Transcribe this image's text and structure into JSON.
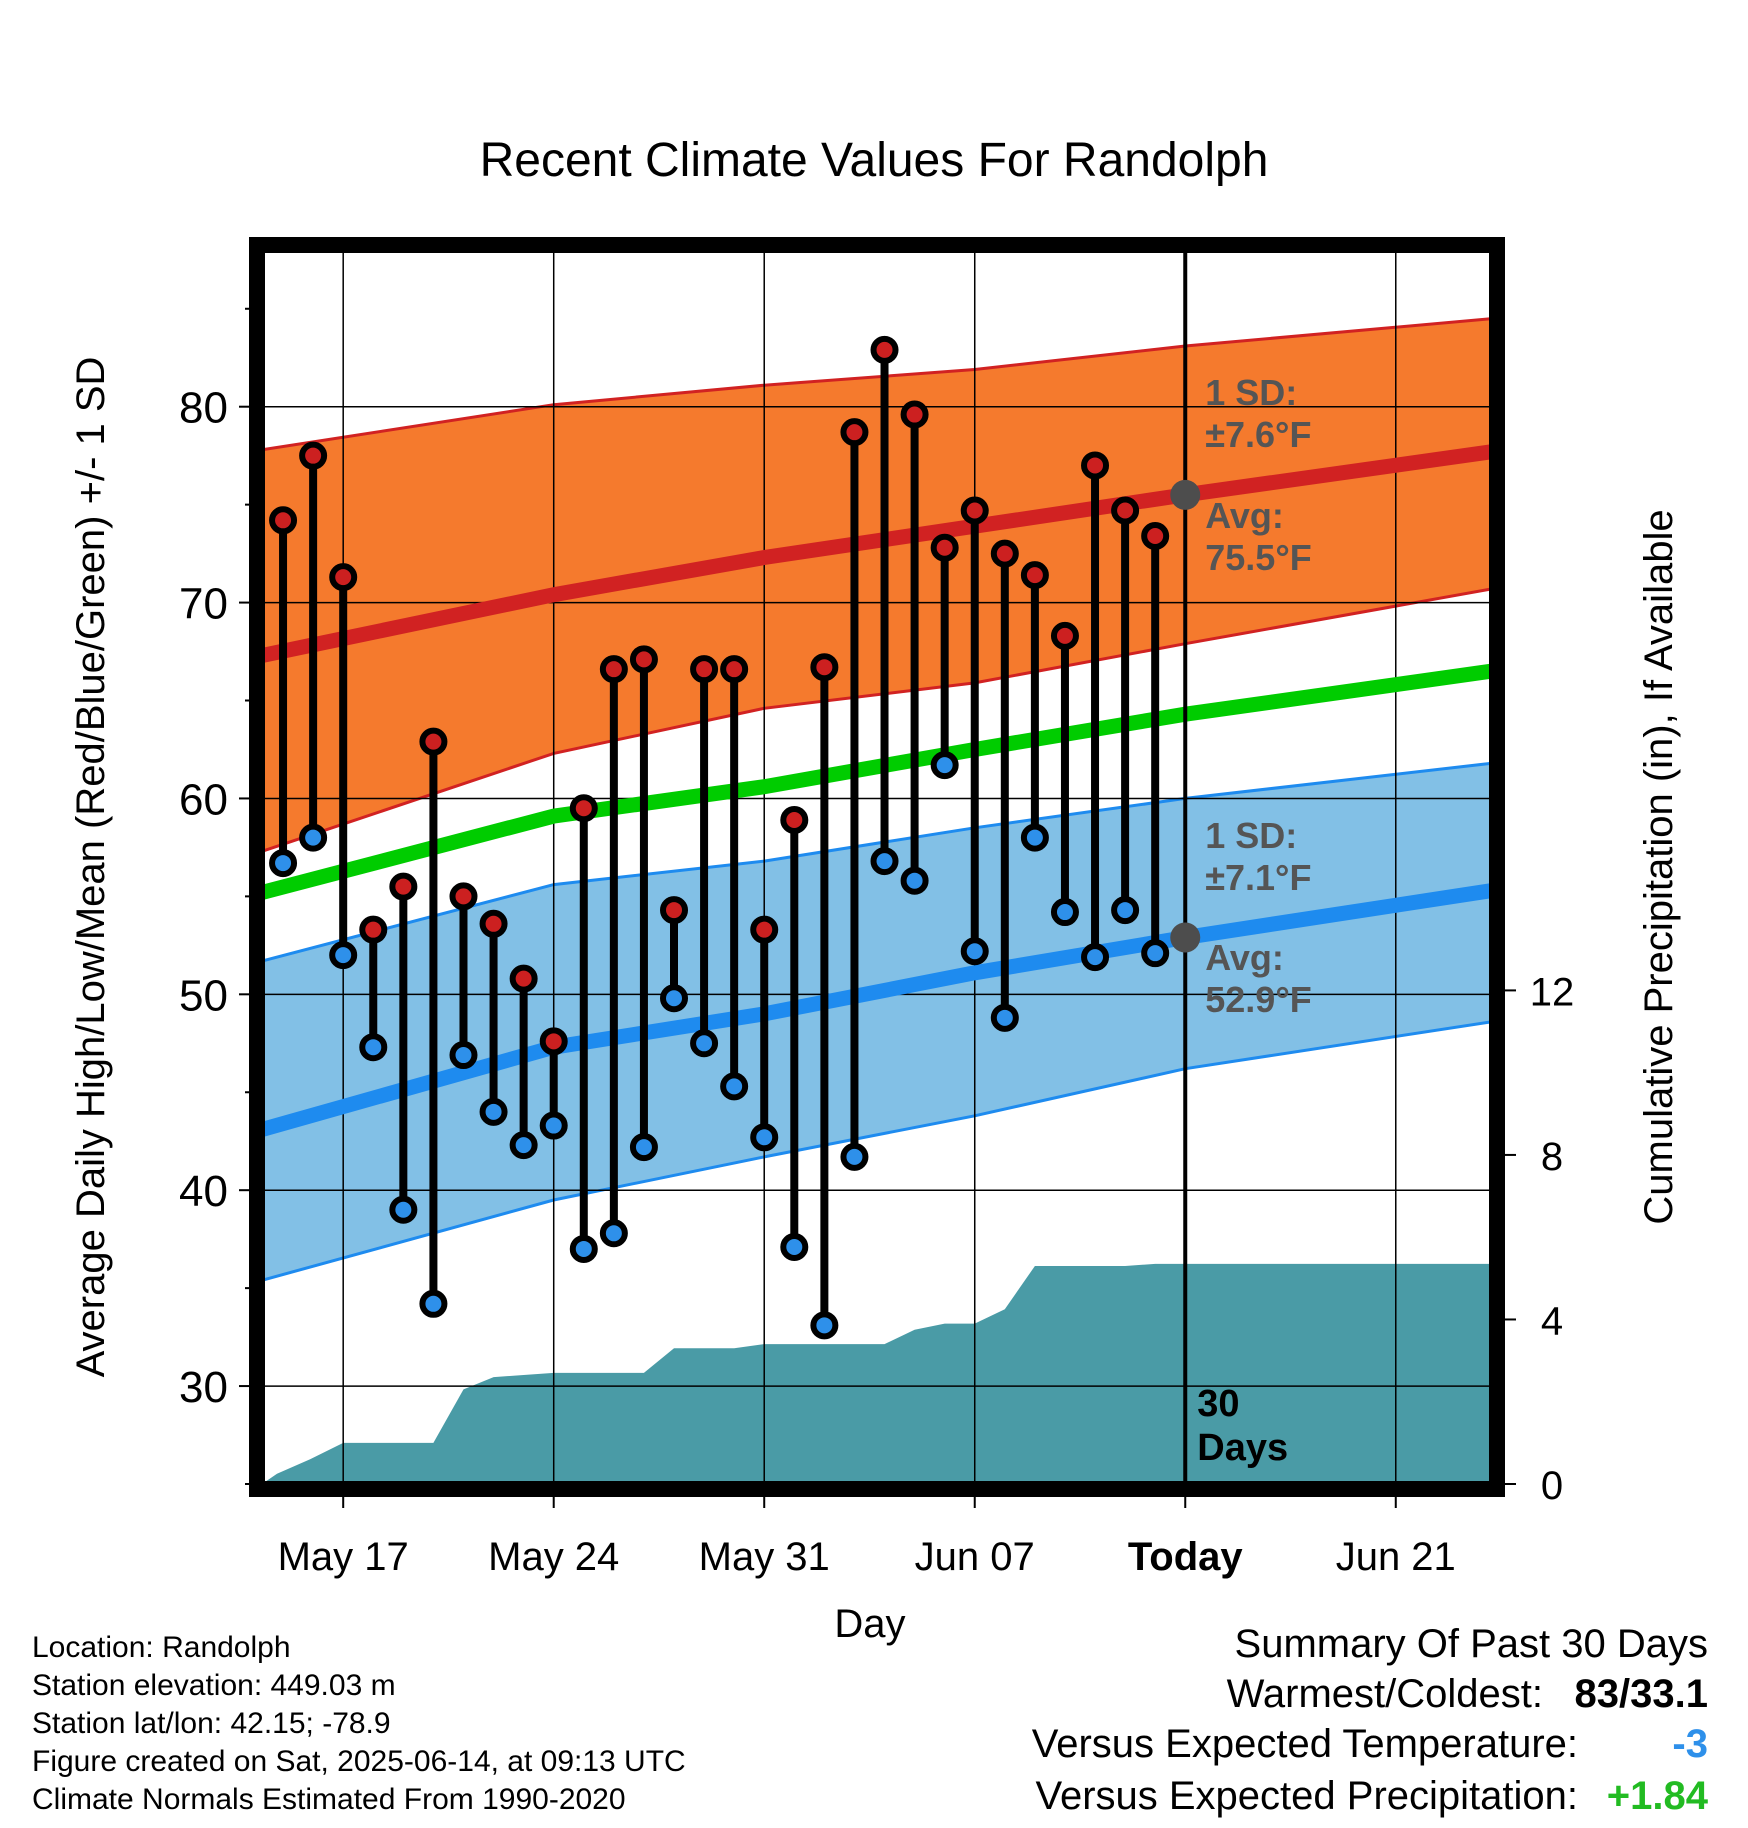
{
  "title": "Recent Climate Values For Randolph",
  "chart_data": {
    "type": "line",
    "title": "Recent Climate Values For Randolph",
    "xlabel": "Day",
    "ylabel_left": "Average Daily High/Low/Mean (Red/Blue/Green) +/- 1 SD",
    "ylabel_right": "Cumulative Precipitation (in), If Available",
    "ylim_left": [
      25,
      88
    ],
    "ylim_right": [
      0,
      30
    ],
    "x_range_days_from_may17": [
      -2.7,
      38.2
    ],
    "yticks_left": [
      30,
      40,
      50,
      60,
      70,
      80
    ],
    "yticks_right": [
      0,
      4,
      8,
      12
    ],
    "xticks": [
      {
        "day": 0,
        "label": "May 17",
        "bold": false
      },
      {
        "day": 7,
        "label": "May 24",
        "bold": false
      },
      {
        "day": 14,
        "label": "May 31",
        "bold": false
      },
      {
        "day": 21,
        "label": "Jun 07",
        "bold": false
      },
      {
        "day": 28,
        "label": "Today",
        "bold": true
      },
      {
        "day": 35,
        "label": "Jun 21",
        "bold": false
      }
    ],
    "today_day": 28,
    "today_annotation": [
      "30",
      "Days"
    ],
    "grid": true,
    "normals": {
      "x": [
        -2.7,
        7,
        14,
        21,
        28,
        38.2
      ],
      "high_mean": [
        67.3,
        70.4,
        72.3,
        73.9,
        75.5,
        77.7
      ],
      "high_plus_sd": [
        77.8,
        80.1,
        81.1,
        81.9,
        83.1,
        84.5
      ],
      "high_minus_sd": [
        57.3,
        62.3,
        64.6,
        65.9,
        67.9,
        70.7
      ],
      "mean": [
        55.2,
        59.1,
        60.6,
        62.5,
        64.3,
        66.5
      ],
      "low_mean": [
        43.1,
        47.3,
        49.0,
        51.1,
        52.9,
        55.3
      ],
      "low_plus_sd": [
        51.7,
        55.6,
        56.8,
        58.5,
        60.0,
        61.8
      ],
      "low_minus_sd": [
        35.4,
        39.5,
        41.7,
        43.8,
        46.2,
        48.6
      ]
    },
    "annotations": {
      "high_sd": [
        "1 SD:",
        "±7.6°F"
      ],
      "high_avg": [
        "Avg:",
        "75.5°F"
      ],
      "low_sd": [
        "1 SD:",
        "±7.1°F"
      ],
      "low_avg": [
        "Avg:",
        "52.9°F"
      ]
    },
    "daily": {
      "day": [
        -2,
        -1,
        0,
        1,
        2,
        3,
        4,
        5,
        6,
        7,
        8,
        9,
        10,
        11,
        12,
        13,
        14,
        15,
        16,
        17,
        18,
        19,
        20,
        21,
        22,
        23,
        24,
        25,
        26,
        27
      ],
      "high": [
        74.2,
        77.5,
        71.3,
        53.3,
        55.5,
        62.9,
        55.0,
        53.6,
        50.8,
        47.6,
        59.5,
        66.6,
        67.1,
        54.3,
        66.6,
        66.6,
        53.3,
        58.9,
        66.7,
        78.7,
        82.9,
        79.6,
        72.8,
        74.7,
        72.5,
        71.4,
        68.3,
        77.0,
        74.7,
        73.4
      ],
      "low": [
        56.7,
        58.0,
        52.0,
        47.3,
        39.0,
        34.2,
        46.9,
        44.0,
        42.3,
        43.3,
        37.0,
        37.8,
        42.2,
        49.8,
        47.5,
        45.3,
        42.7,
        37.1,
        33.1,
        41.7,
        56.8,
        55.8,
        61.7,
        52.2,
        48.8,
        58.0,
        54.2,
        51.9,
        54.3,
        52.1
      ]
    },
    "precip_cumulative": {
      "x": [
        -2.7,
        -2.2,
        -1.1,
        0,
        3,
        4,
        5,
        6,
        7,
        8,
        9,
        10,
        11,
        12,
        13,
        14,
        15,
        16,
        17,
        18,
        19,
        20,
        21,
        22,
        23,
        24,
        25,
        26,
        27,
        28,
        38.2
      ],
      "y": [
        0,
        0.25,
        0.6,
        1.0,
        1.0,
        2.3,
        2.6,
        2.65,
        2.7,
        2.7,
        2.7,
        2.7,
        3.3,
        3.3,
        3.3,
        3.4,
        3.4,
        3.4,
        3.4,
        3.4,
        3.75,
        3.9,
        3.9,
        4.25,
        5.3,
        5.3,
        5.3,
        5.3,
        5.35,
        5.35,
        5.35
      ]
    },
    "colors": {
      "high_band": "#f57a2d",
      "high_line": "#d12222",
      "mean_line": "#00cc00",
      "low_band": "#82c0e6",
      "low_line": "#1e8bef",
      "precip": "#4a9ba6",
      "high_dot": "#cc2020",
      "low_dot": "#2e90ea",
      "annotation_text": "#555555"
    }
  },
  "info": {
    "location": "Location: Randolph",
    "elevation": "Station elevation: 449.03 m",
    "latlon": "Station lat/lon: 42.15; -78.9",
    "created": "Figure created on Sat, 2025-06-14, at 09:13 UTC",
    "normals": "Climate Normals Estimated From 1990-2020"
  },
  "summary": {
    "title": "Summary Of Past 30 Days",
    "warmest_label": "Warmest/Coldest:",
    "warmest_value": "83/33.1",
    "temp_label": "Versus Expected Temperature:",
    "temp_value": "-3",
    "temp_color": "#2e90ea",
    "precip_label": "Versus Expected Precipitation:",
    "precip_value": "+1.84",
    "precip_color": "#22bb22"
  }
}
